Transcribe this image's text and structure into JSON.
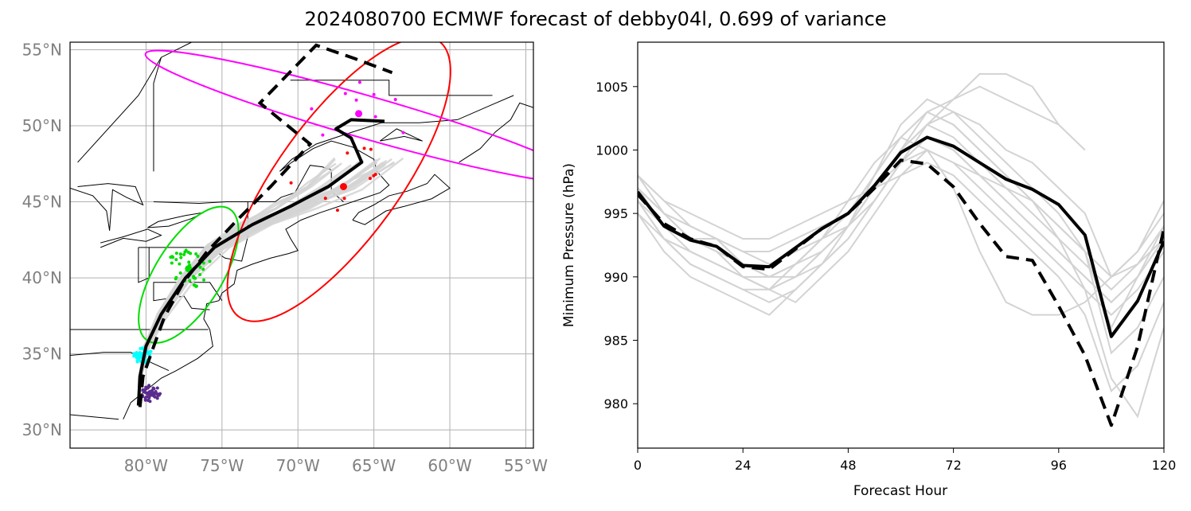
{
  "title": "2024080700 ECMWF forecast of debby04l, 0.699 of variance",
  "chart_data": [
    {
      "type": "map",
      "panel": "left",
      "lon_range": [
        -85,
        -54.5
      ],
      "lat_range": [
        28.8,
        55.5
      ],
      "grid": true,
      "x_tick_labels": [
        "80°W",
        "75°W",
        "70°W",
        "65°W",
        "60°W",
        "55°W"
      ],
      "y_tick_labels": [
        "30°N",
        "35°N",
        "40°N",
        "45°N",
        "50°N",
        "55°N"
      ],
      "x_ticks": [
        -80,
        -75,
        -70,
        -65,
        -60,
        -55
      ],
      "y_ticks": [
        30,
        35,
        40,
        45,
        50,
        55
      ],
      "mean_track_solid": [
        [
          -80.5,
          31.6
        ],
        [
          -80.4,
          33.5
        ],
        [
          -80.0,
          35.5
        ],
        [
          -79.0,
          37.6
        ],
        [
          -77.4,
          40.0
        ],
        [
          -75.5,
          42.0
        ],
        [
          -73.0,
          43.5
        ],
        [
          -70.5,
          44.7
        ],
        [
          -68.0,
          46.0
        ],
        [
          -65.8,
          47.6
        ],
        [
          -66.5,
          49.2
        ],
        [
          -67.5,
          49.8
        ],
        [
          -66.5,
          50.4
        ],
        [
          -64.3,
          50.3
        ]
      ],
      "mean_track_dashed": [
        [
          -80.4,
          31.5
        ],
        [
          -80.2,
          33.5
        ],
        [
          -79.6,
          35.2
        ],
        [
          -78.8,
          37.4
        ],
        [
          -77.6,
          39.6
        ],
        [
          -76.0,
          41.7
        ],
        [
          -74.0,
          43.8
        ],
        [
          -71.8,
          46.0
        ],
        [
          -69.2,
          48.8
        ],
        [
          -72.5,
          51.5
        ],
        [
          -68.8,
          55.3
        ],
        [
          -66.2,
          54.4
        ],
        [
          -63.8,
          53.5
        ]
      ],
      "ellipses": [
        {
          "color": "#00dd00",
          "center": [
            -77.2,
            40.2
          ],
          "semi_axes_deg": [
            2.2,
            5.1
          ],
          "tilt_deg": 32
        },
        {
          "color": "#ff0000",
          "center": [
            -67.3,
            46.5
          ],
          "semi_axes_deg": [
            4.0,
            11.2
          ],
          "tilt_deg": 36
        },
        {
          "color": "#ff00ff",
          "center": [
            -65.6,
            50.6
          ],
          "semi_axes_deg": [
            1.4,
            15.0
          ],
          "tilt_deg": -74
        }
      ],
      "point_clusters": [
        {
          "color": "#5b2c8f",
          "center": [
            -79.7,
            32.4
          ]
        },
        {
          "color": "#00ffff",
          "center": [
            -80.2,
            34.9
          ]
        },
        {
          "color": "#00dd00",
          "center": [
            -77.2,
            40.6
          ]
        },
        {
          "color": "#ff0000",
          "center": [
            -67.0,
            46.0
          ]
        },
        {
          "color": "#ff00ff",
          "center": [
            -66.0,
            50.8
          ]
        }
      ]
    },
    {
      "type": "line",
      "panel": "right",
      "xlabel": "Forecast Hour",
      "ylabel": "Minimum Pressure (hPa)",
      "xlim": [
        0,
        120
      ],
      "ylim": [
        976.5,
        1008.5
      ],
      "x_ticks": [
        0,
        24,
        48,
        72,
        96,
        120
      ],
      "y_ticks": [
        980,
        985,
        990,
        995,
        1000,
        1005
      ],
      "series": [
        {
          "style": "solid",
          "color": "#000000",
          "x": [
            0,
            6,
            12,
            18,
            24,
            30,
            36,
            42,
            48,
            54,
            60,
            66,
            72,
            78,
            84,
            90,
            96,
            102,
            108,
            114,
            120
          ],
          "y": [
            996.7,
            994.0,
            992.9,
            992.4,
            990.9,
            990.8,
            992.3,
            993.8,
            995.0,
            997.2,
            999.8,
            1001.0,
            1000.3,
            999.0,
            997.7,
            996.9,
            995.7,
            993.3,
            985.3,
            988.1,
            992.8
          ]
        },
        {
          "style": "dashed",
          "color": "#000000",
          "x": [
            0,
            6,
            12,
            18,
            24,
            30,
            36,
            42,
            48,
            54,
            60,
            66,
            72,
            78,
            84,
            90,
            96,
            102,
            108,
            114,
            120
          ],
          "y": [
            996.5,
            994.2,
            993.0,
            992.4,
            990.8,
            990.6,
            992.2,
            993.8,
            995.0,
            997.0,
            999.2,
            998.9,
            997.1,
            994.2,
            991.6,
            991.3,
            987.7,
            983.8,
            978.3,
            984.5,
            993.8
          ]
        }
      ],
      "ensemble_members": [
        [
          996,
          993,
          991,
          990,
          989,
          989,
          991,
          993,
          996,
          999,
          1001,
          1000,
          999,
          998,
          997,
          996,
          994,
          992,
          986,
          990,
          994
        ],
        [
          997,
          995,
          994,
          993,
          992,
          992,
          993,
          994,
          995,
          997,
          999,
          1002,
          1003,
          1002,
          1000,
          999,
          997,
          995,
          990,
          991,
          993
        ],
        [
          995,
          992,
          990,
          989,
          988,
          987,
          989,
          991,
          994,
          998,
          1002,
          1004,
          1003,
          1001,
          999,
          997,
          995,
          992,
          984,
          986,
          990
        ],
        [
          998,
          996,
          995,
          994,
          993,
          993,
          994,
          995,
          996,
          997,
          998,
          999,
          998,
          996,
          994,
          992,
          990,
          987,
          981,
          983,
          988
        ],
        [
          997,
          994,
          992,
          991,
          990,
          989,
          990,
          992,
          994,
          997,
          1000,
          1003,
          1004,
          1005,
          1004,
          1003,
          1002,
          1000
        ],
        [
          996,
          993,
          992,
          991,
          990,
          990,
          991,
          993,
          995,
          998,
          1001,
          1003,
          1002,
          1000,
          998,
          996,
          993,
          989,
          982,
          979,
          986
        ],
        [
          998,
          995,
          994,
          993,
          992,
          991,
          992,
          993,
          994,
          996,
          999,
          1000,
          997,
          992,
          988,
          987,
          987,
          988,
          990,
          992,
          996
        ],
        [
          996,
          994,
          993,
          993,
          991,
          990,
          990,
          991,
          993,
          996,
          999,
          1001,
          1000,
          998,
          996,
          994,
          992,
          990,
          988,
          990,
          993
        ],
        [
          997,
          995,
          993,
          992,
          990,
          989,
          988,
          990,
          992,
          995,
          998,
          1000,
          999,
          997,
          995,
          993,
          991,
          989,
          987,
          989,
          992
        ],
        [
          995,
          993,
          992,
          991,
          990,
          989,
          990,
          992,
          994,
          997,
          1000,
          1002,
          1001,
          999,
          997,
          995,
          993,
          991,
          989,
          991,
          994
        ],
        [
          998,
          996,
          994,
          993,
          991,
          990,
          991,
          993,
          995,
          998,
          1001,
          1003,
          1002,
          1000,
          998,
          996,
          994,
          992,
          990,
          992,
          995
        ],
        [
          996,
          993,
          991,
          990,
          989,
          988,
          989,
          991,
          993,
          996,
          999,
          1001,
          1000,
          998,
          996,
          994,
          992,
          990,
          988,
          990,
          993
        ],
        [
          997,
          995,
          993,
          992,
          991,
          990,
          991,
          992,
          994,
          997,
          1000,
          1002,
          1004,
          1006,
          1006,
          1005,
          1002
        ]
      ]
    }
  ]
}
